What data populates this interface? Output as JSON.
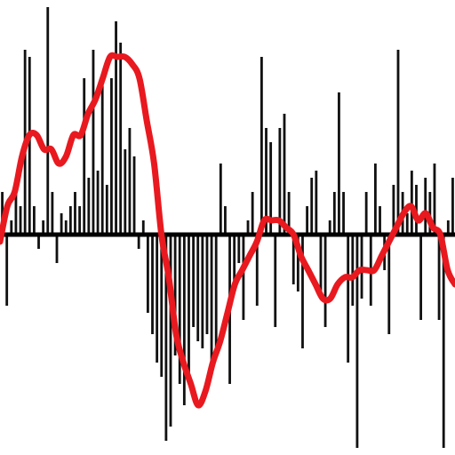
{
  "chart_data": {
    "type": "bar",
    "title": "",
    "xlabel": "",
    "ylabel": "",
    "grid": false,
    "legend": "none",
    "x_range": [
      0,
      100
    ],
    "y_range": [
      -1.6,
      1.6
    ],
    "colors": {
      "bars": "#111111",
      "baseline": "#000000",
      "smoothed_line": "#e8191f",
      "background": "#ffffff"
    },
    "series": [
      {
        "kind": "bar",
        "values": [
          0.3,
          -0.5,
          0.1,
          0.4,
          0.2,
          1.3,
          1.25,
          0.2,
          -0.1,
          0.1,
          1.6,
          0.3,
          -0.2,
          0.15,
          0.1,
          0.2,
          0.3,
          0.2,
          1.1,
          0.4,
          1.3,
          0.45,
          1.05,
          0.35,
          1.1,
          1.5,
          1.35,
          0.6,
          0.75,
          0.55,
          -0.1,
          0.1,
          -0.55,
          -0.7,
          -0.9,
          -1.0,
          -1.45,
          -1.35,
          -0.85,
          -1.05,
          -1.2,
          -1.0,
          -0.65,
          -0.75,
          -0.8,
          -0.7,
          -0.9,
          -0.85,
          0.5,
          0.2,
          -1.05,
          -0.4,
          -0.2,
          -0.6,
          0.1,
          0.3,
          -0.5,
          1.25,
          0.75,
          0.65,
          -0.65,
          0.75,
          0.85,
          0.3,
          -0.35,
          -0.4,
          -0.8,
          0.2,
          0.4,
          0.45,
          -0.45,
          -0.65,
          0.1,
          0.3,
          1.0,
          0.3,
          -0.9,
          -0.5,
          -1.5,
          -0.45,
          0.3,
          -0.5,
          0.5,
          0.2,
          -0.25,
          -0.7,
          0.35,
          1.3,
          0.3,
          0.15,
          0.45,
          0.35,
          -0.6,
          0.4,
          0.3,
          0.5,
          -0.6,
          -1.5,
          0.1,
          0.4
        ]
      },
      {
        "kind": "line",
        "smoothed": true,
        "values": [
          -0.05,
          0.2,
          0.3,
          0.55,
          0.7,
          0.7,
          0.6,
          0.6,
          0.5,
          0.55,
          0.7,
          0.7,
          0.85,
          0.95,
          1.1,
          1.25,
          1.25,
          1.25,
          1.2,
          1.1,
          0.8,
          0.5,
          0.0,
          -0.3,
          -0.7,
          -0.9,
          -1.05,
          -1.2,
          -1.1,
          -0.9,
          -0.75,
          -0.55,
          -0.35,
          -0.25,
          -0.15,
          -0.05,
          0.1,
          0.1,
          0.1,
          0.05,
          0.0,
          -0.15,
          -0.25,
          -0.35,
          -0.45,
          -0.45,
          -0.35,
          -0.3,
          -0.3,
          -0.25,
          -0.25,
          -0.25,
          -0.15,
          -0.05,
          0.05,
          0.15,
          0.2,
          0.1,
          0.15,
          0.05,
          0.0,
          -0.25,
          -0.35
        ]
      }
    ]
  }
}
